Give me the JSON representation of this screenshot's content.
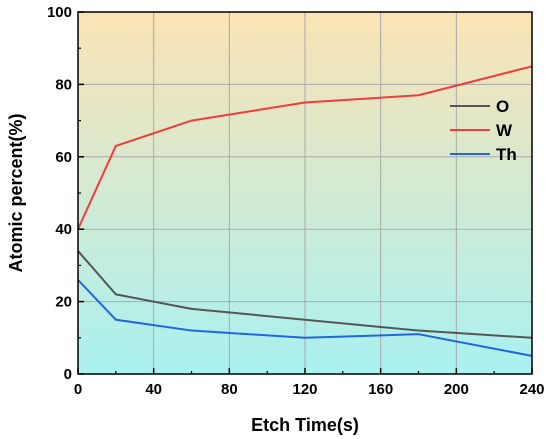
{
  "chart_data": {
    "type": "line",
    "title": "",
    "xlabel": "Etch Time(s)",
    "ylabel": "Atomic percent(%)",
    "xlim": [
      0,
      240
    ],
    "ylim": [
      0,
      100
    ],
    "xticks": [
      0,
      40,
      80,
      120,
      160,
      200,
      240
    ],
    "yticks": [
      0,
      20,
      40,
      60,
      80,
      100
    ],
    "grid": true,
    "legend_position": "upper-right",
    "background_gradient": {
      "top": "#fbe3b4",
      "bottom": "#a9f1f1"
    },
    "series": [
      {
        "name": "O",
        "color": "#555555",
        "x": [
          0,
          20,
          60,
          120,
          180,
          240
        ],
        "y": [
          34,
          22,
          18,
          15,
          12,
          10
        ]
      },
      {
        "name": "W",
        "color": "#f03c3c",
        "x": [
          0,
          20,
          60,
          120,
          180,
          240
        ],
        "y": [
          40,
          63,
          70,
          75,
          77,
          85
        ]
      },
      {
        "name": "Th",
        "color": "#2266dd",
        "x": [
          0,
          20,
          60,
          120,
          180,
          240
        ],
        "y": [
          26,
          15,
          12,
          10,
          11,
          5
        ]
      }
    ]
  }
}
